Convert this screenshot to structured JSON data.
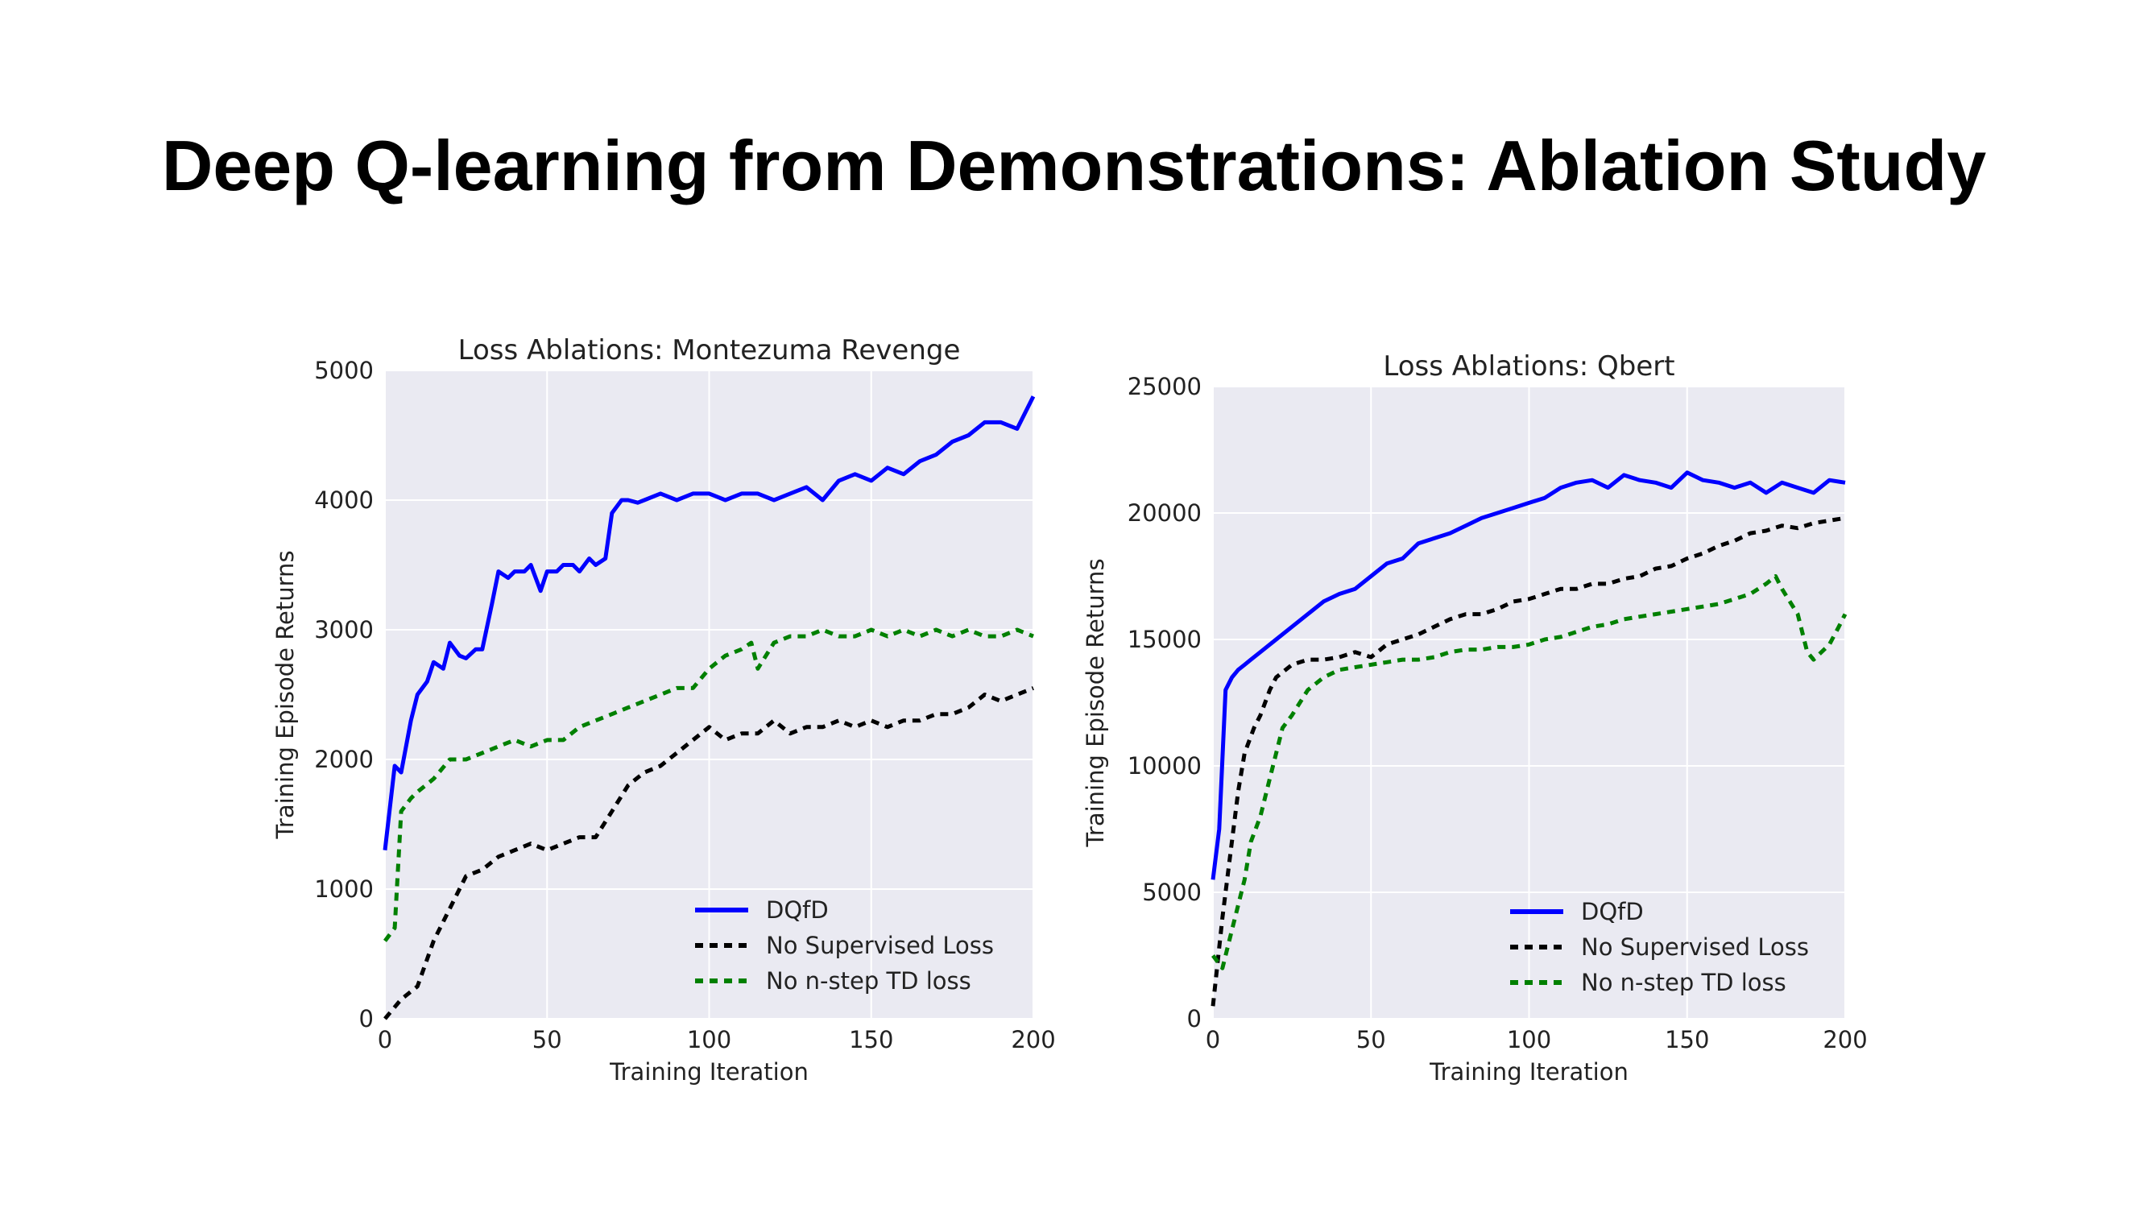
{
  "slide": {
    "title": "Deep Q-learning from Demonstrations: Ablation Study"
  },
  "colors": {
    "dqfd": "#0000ff",
    "no_supervised": "#000000",
    "no_nstep": "#008000",
    "plot_bg": "#eaeaf2",
    "grid": "#ffffff"
  },
  "chart_data": [
    {
      "type": "line",
      "title": "Loss Ablations: Montezuma Revenge",
      "xlabel": "Training Iteration",
      "ylabel": "Training Episode Returns",
      "xlim": [
        0,
        200
      ],
      "ylim": [
        0,
        5000
      ],
      "xticks": [
        0,
        50,
        100,
        150,
        200
      ],
      "yticks": [
        0,
        1000,
        2000,
        3000,
        4000,
        5000
      ],
      "grid": true,
      "legend": "lower-right",
      "series": [
        {
          "name": "DQfD",
          "style": "solid",
          "x": [
            0,
            3,
            5,
            8,
            10,
            13,
            15,
            18,
            20,
            23,
            25,
            28,
            30,
            33,
            35,
            38,
            40,
            43,
            45,
            48,
            50,
            53,
            55,
            58,
            60,
            63,
            65,
            68,
            70,
            73,
            75,
            78,
            80,
            85,
            90,
            95,
            100,
            105,
            110,
            115,
            120,
            125,
            130,
            135,
            140,
            145,
            150,
            155,
            160,
            165,
            170,
            175,
            180,
            185,
            190,
            195,
            200
          ],
          "y": [
            1300,
            1950,
            1900,
            2300,
            2500,
            2600,
            2750,
            2700,
            2900,
            2800,
            2780,
            2850,
            2850,
            3200,
            3450,
            3400,
            3450,
            3450,
            3500,
            3300,
            3450,
            3450,
            3500,
            3500,
            3450,
            3550,
            3500,
            3550,
            3900,
            4000,
            4000,
            3980,
            4000,
            4050,
            4000,
            4050,
            4050,
            4000,
            4050,
            4050,
            4000,
            4050,
            4100,
            4000,
            4150,
            4200,
            4150,
            4250,
            4200,
            4300,
            4350,
            4450,
            4500,
            4600,
            4600,
            4550,
            4800
          ]
        },
        {
          "name": "No Supervised Loss",
          "style": "dashed",
          "x": [
            0,
            5,
            10,
            15,
            20,
            25,
            30,
            35,
            40,
            45,
            50,
            55,
            60,
            65,
            70,
            75,
            80,
            85,
            90,
            95,
            100,
            105,
            110,
            115,
            120,
            125,
            130,
            135,
            140,
            145,
            150,
            155,
            160,
            165,
            170,
            175,
            180,
            185,
            190,
            195,
            200
          ],
          "y": [
            0,
            150,
            250,
            600,
            850,
            1100,
            1150,
            1250,
            1300,
            1350,
            1300,
            1350,
            1400,
            1400,
            1600,
            1800,
            1900,
            1950,
            2050,
            2150,
            2250,
            2150,
            2200,
            2200,
            2300,
            2200,
            2250,
            2250,
            2300,
            2250,
            2300,
            2250,
            2300,
            2300,
            2350,
            2350,
            2400,
            2500,
            2450,
            2500,
            2550
          ]
        },
        {
          "name": "No n-step TD loss",
          "style": "dashed",
          "x": [
            0,
            3,
            5,
            8,
            10,
            15,
            20,
            25,
            30,
            35,
            40,
            45,
            50,
            55,
            60,
            65,
            70,
            75,
            80,
            85,
            90,
            95,
            100,
            105,
            110,
            113,
            115,
            120,
            125,
            130,
            135,
            140,
            145,
            150,
            155,
            160,
            165,
            170,
            175,
            180,
            185,
            190,
            195,
            200
          ],
          "y": [
            600,
            700,
            1600,
            1700,
            1750,
            1850,
            2000,
            2000,
            2050,
            2100,
            2150,
            2100,
            2150,
            2150,
            2250,
            2300,
            2350,
            2400,
            2450,
            2500,
            2550,
            2550,
            2700,
            2800,
            2850,
            2900,
            2700,
            2900,
            2950,
            2950,
            3000,
            2950,
            2950,
            3000,
            2950,
            3000,
            2950,
            3000,
            2950,
            3000,
            2950,
            2950,
            3000,
            2950
          ]
        }
      ]
    },
    {
      "type": "line",
      "title": "Loss Ablations: Qbert",
      "xlabel": "Training Iteration",
      "ylabel": "Training Episode Returns",
      "xlim": [
        0,
        200
      ],
      "ylim": [
        0,
        25000
      ],
      "xticks": [
        0,
        50,
        100,
        150,
        200
      ],
      "yticks": [
        0,
        5000,
        10000,
        15000,
        20000,
        25000
      ],
      "grid": true,
      "legend": "lower-right",
      "series": [
        {
          "name": "DQfD",
          "style": "solid",
          "x": [
            0,
            2,
            4,
            6,
            8,
            10,
            12,
            15,
            20,
            25,
            30,
            35,
            40,
            45,
            50,
            55,
            60,
            65,
            70,
            75,
            80,
            85,
            90,
            95,
            100,
            105,
            110,
            115,
            120,
            125,
            130,
            135,
            140,
            145,
            150,
            155,
            160,
            165,
            170,
            175,
            180,
            185,
            190,
            195,
            200
          ],
          "y": [
            5500,
            7500,
            13000,
            13500,
            13800,
            14000,
            14200,
            14500,
            15000,
            15500,
            16000,
            16500,
            16800,
            17000,
            17500,
            18000,
            18200,
            18800,
            19000,
            19200,
            19500,
            19800,
            20000,
            20200,
            20400,
            20600,
            21000,
            21200,
            21300,
            21000,
            21500,
            21300,
            21200,
            21000,
            21600,
            21300,
            21200,
            21000,
            21200,
            20800,
            21200,
            21000,
            20800,
            21300,
            21200
          ]
        },
        {
          "name": "No Supervised Loss",
          "style": "dashed",
          "x": [
            0,
            3,
            5,
            8,
            10,
            13,
            15,
            18,
            20,
            25,
            30,
            35,
            40,
            45,
            50,
            55,
            60,
            65,
            70,
            75,
            80,
            85,
            90,
            95,
            100,
            105,
            110,
            115,
            120,
            125,
            130,
            135,
            140,
            145,
            150,
            155,
            160,
            165,
            170,
            175,
            180,
            185,
            190,
            195,
            200
          ],
          "y": [
            500,
            4000,
            6000,
            9000,
            10500,
            11500,
            12000,
            13000,
            13500,
            14000,
            14200,
            14200,
            14300,
            14500,
            14300,
            14800,
            15000,
            15200,
            15500,
            15800,
            16000,
            16000,
            16200,
            16500,
            16600,
            16800,
            17000,
            17000,
            17200,
            17200,
            17400,
            17500,
            17800,
            17900,
            18200,
            18400,
            18700,
            18900,
            19200,
            19300,
            19500,
            19400,
            19600,
            19700,
            19800
          ]
        },
        {
          "name": "No n-step TD loss",
          "style": "dashed",
          "x": [
            0,
            3,
            5,
            8,
            10,
            12,
            15,
            18,
            20,
            22,
            25,
            30,
            35,
            40,
            45,
            50,
            55,
            60,
            65,
            70,
            75,
            80,
            85,
            90,
            95,
            100,
            105,
            110,
            115,
            120,
            125,
            130,
            135,
            140,
            145,
            150,
            155,
            160,
            165,
            170,
            175,
            178,
            180,
            185,
            188,
            190,
            195,
            198,
            200
          ],
          "y": [
            2500,
            2000,
            3000,
            4500,
            5500,
            7000,
            8000,
            9500,
            10500,
            11500,
            12000,
            13000,
            13500,
            13800,
            13900,
            14000,
            14100,
            14200,
            14200,
            14300,
            14500,
            14600,
            14600,
            14700,
            14700,
            14800,
            15000,
            15100,
            15300,
            15500,
            15600,
            15800,
            15900,
            16000,
            16100,
            16200,
            16300,
            16400,
            16600,
            16800,
            17200,
            17500,
            17000,
            16000,
            14500,
            14200,
            14800,
            15500,
            16000
          ]
        }
      ]
    }
  ]
}
